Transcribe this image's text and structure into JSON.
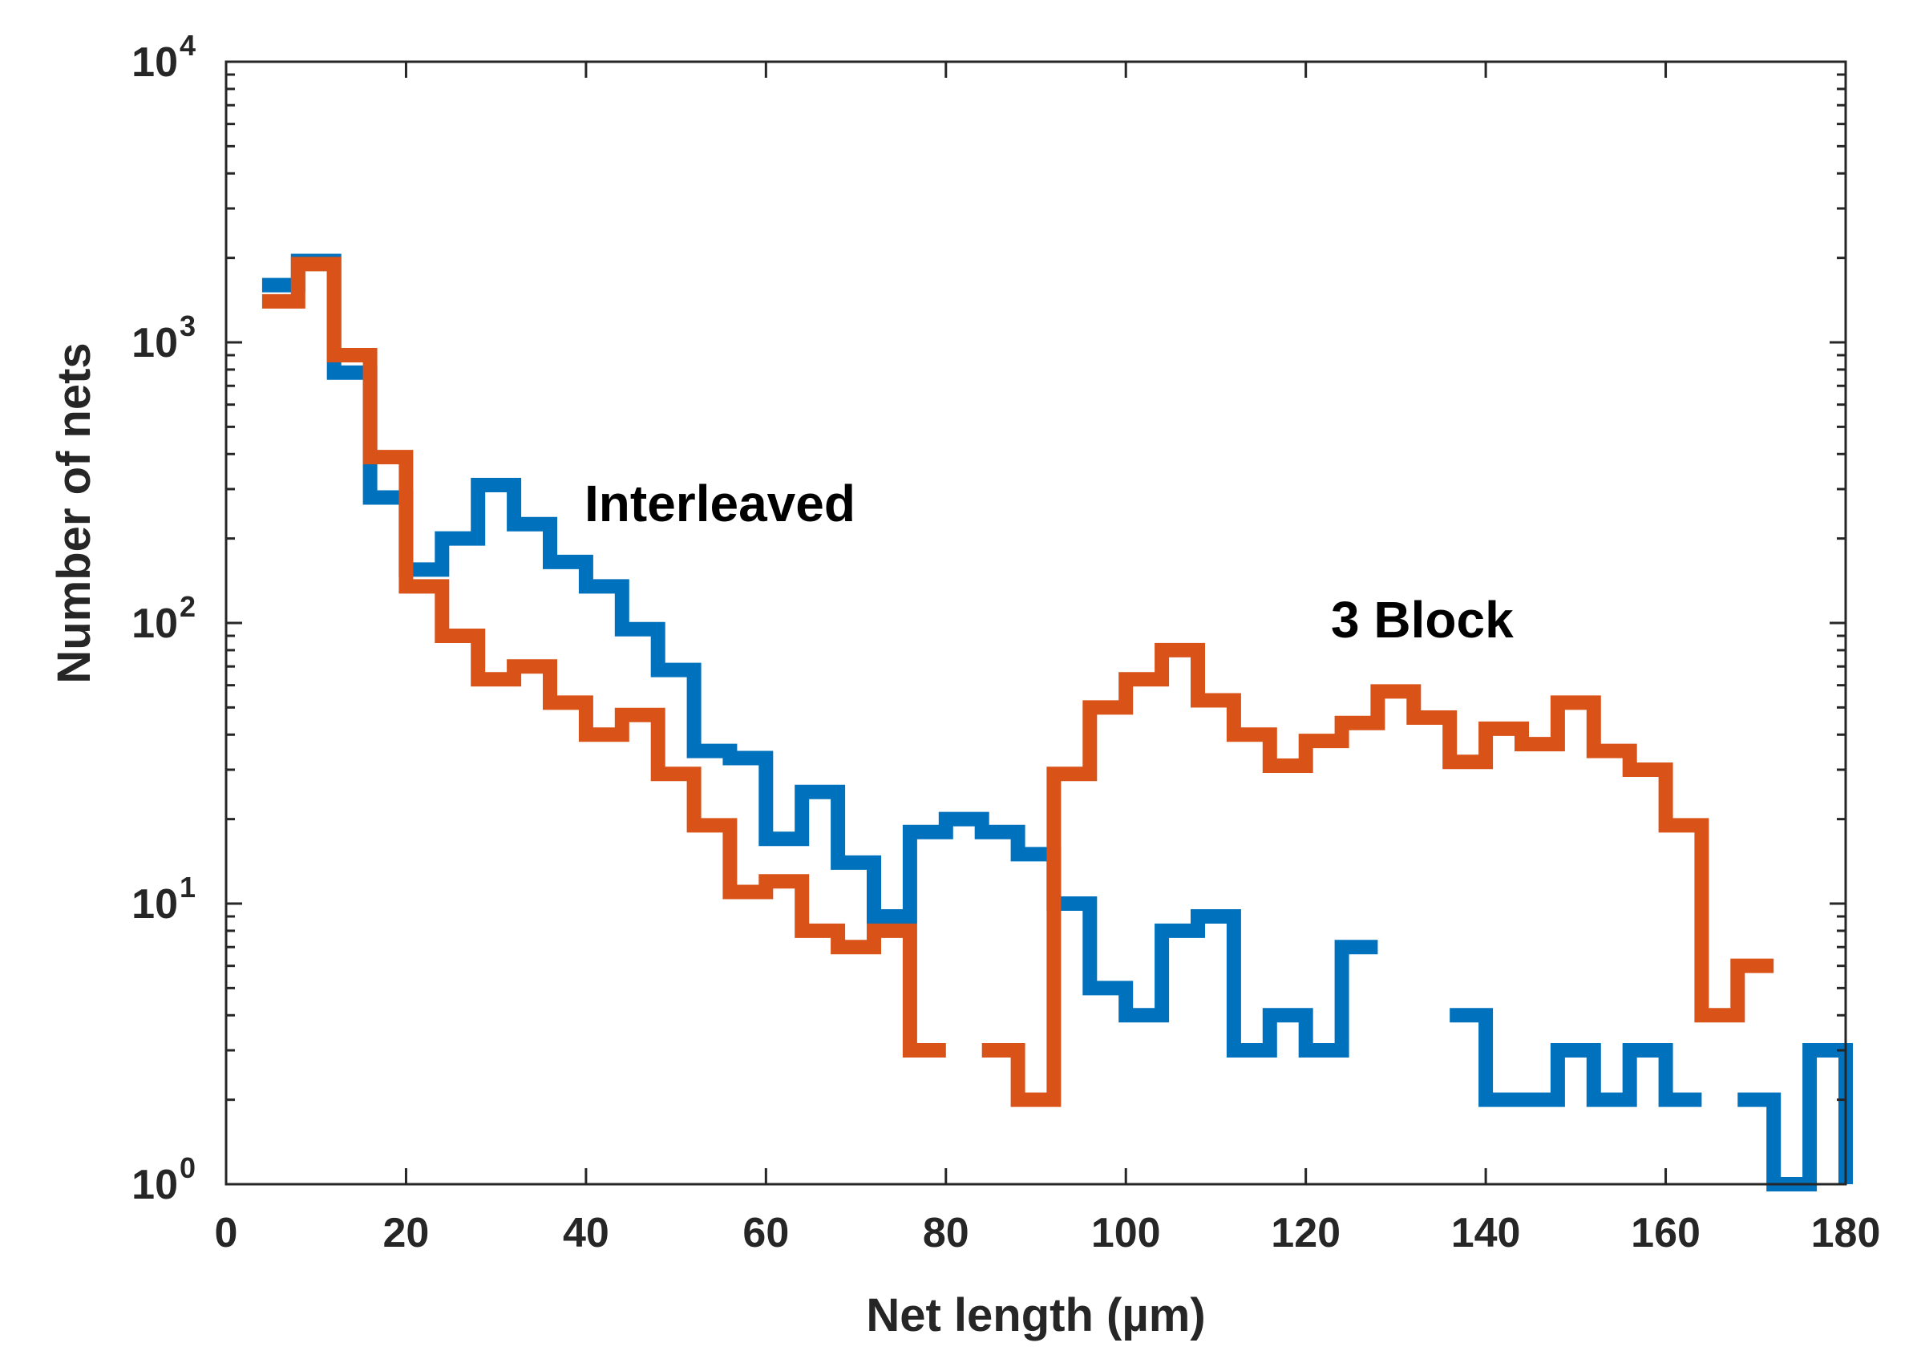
{
  "chart_data": {
    "type": "line",
    "subtype": "stairs-histogram",
    "xlabel": "Net length (µm)",
    "ylabel": "Number of nets",
    "xlim": [
      0,
      180
    ],
    "ylim": [
      1,
      10000
    ],
    "yscale": "log",
    "xticks": [
      0,
      20,
      40,
      60,
      80,
      100,
      120,
      140,
      160,
      180
    ],
    "xtick_labels": [
      "0",
      "20",
      "40",
      "60",
      "80",
      "100",
      "120",
      "140",
      "160",
      "180"
    ],
    "yticks": [
      1,
      10,
      100,
      1000,
      10000
    ],
    "ytick_labels": [
      {
        "base": "10",
        "exp": "0"
      },
      {
        "base": "10",
        "exp": "1"
      },
      {
        "base": "10",
        "exp": "2"
      },
      {
        "base": "10",
        "exp": "3"
      },
      {
        "base": "10",
        "exp": "4"
      }
    ],
    "grid": false,
    "bin_edges": [
      4,
      8,
      12,
      16,
      20,
      24,
      28,
      32,
      36,
      40,
      44,
      48,
      52,
      56,
      60,
      64,
      68,
      72,
      76,
      80,
      84,
      88,
      92,
      96,
      100,
      104,
      108,
      112,
      116,
      120,
      124,
      128,
      132,
      136,
      140,
      144,
      148,
      152,
      156,
      160,
      164,
      168,
      172,
      176,
      180
    ],
    "series": [
      {
        "name": "Interleaved",
        "color": "#0072BD",
        "values": [
          1600,
          1950,
          780,
          280,
          155,
          200,
          310,
          225,
          165,
          135,
          95,
          68,
          35,
          33,
          17,
          25,
          14,
          9,
          18,
          20,
          18,
          15,
          10,
          5,
          4,
          8,
          9,
          3,
          4,
          3,
          7,
          null,
          0,
          4,
          2,
          2,
          3,
          2,
          3,
          2,
          null,
          2,
          1,
          3,
          1
        ]
      },
      {
        "name": "3 Block",
        "color": "#D95319",
        "values": [
          1400,
          1900,
          900,
          390,
          135,
          90,
          63,
          70,
          52,
          40,
          47,
          29,
          19,
          11,
          12,
          8,
          7,
          8,
          3,
          null,
          3,
          2,
          29,
          50,
          63,
          80,
          53,
          40,
          31,
          38,
          44,
          57,
          46,
          32,
          42,
          37,
          52,
          35,
          30,
          19,
          4,
          6
        ]
      }
    ],
    "annotations": [
      {
        "text": "Interleaved",
        "x": 39,
        "y": 250
      },
      {
        "text": "3 Block",
        "x": 122,
        "y": 90
      }
    ]
  }
}
